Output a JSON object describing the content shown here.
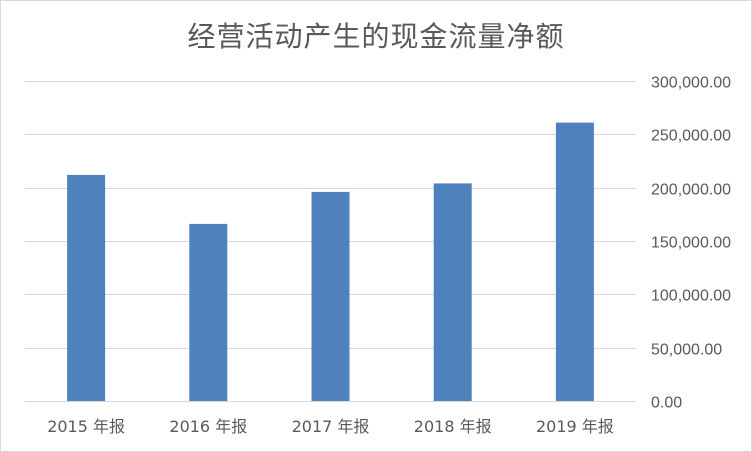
{
  "chart_data": {
    "type": "bar",
    "title": "经营活动产生的现金流量净额",
    "categories": [
      "2015 年报",
      "2016 年报",
      "2017 年报",
      "2018 年报",
      "2019 年报"
    ],
    "values": [
      212000,
      166000,
      196000,
      204000,
      261000
    ],
    "ylim": [
      0,
      300000
    ],
    "yticks": [
      "0.00",
      "50,000.00",
      "100,000.00",
      "150,000.00",
      "200,000.00",
      "250,000.00",
      "300,000.00"
    ],
    "ytick_values": [
      0,
      50000,
      100000,
      150000,
      200000,
      250000,
      300000
    ],
    "y_axis_side": "right",
    "grid": true,
    "legend": "none",
    "bar_color": "#4f81bd",
    "grid_color": "#d9d9d9"
  }
}
